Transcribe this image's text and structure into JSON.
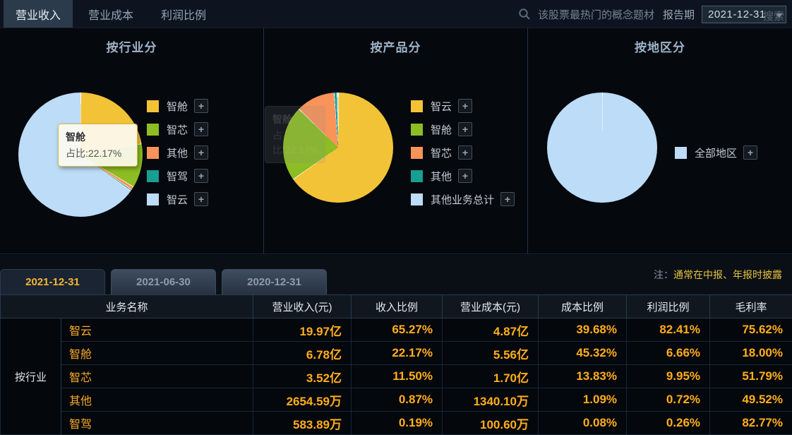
{
  "top_tabs": [
    {
      "label": "营业收入",
      "active": true
    },
    {
      "label": "营业成本",
      "active": false
    },
    {
      "label": "利润比例",
      "active": false
    }
  ],
  "search": {
    "placeholder": "该股票最热门的概念题材",
    "report_period_label": "报告期",
    "selected_date": "2021-12-31",
    "hidden_search_label": "搜索",
    "icon": "search-icon"
  },
  "chart_data": [
    {
      "type": "pie",
      "title": "按行业分",
      "legend_position": "right",
      "series": [
        {
          "name": "智舱",
          "value": 22.17,
          "color": "#f3c337"
        },
        {
          "name": "智芯",
          "value": 11.5,
          "color": "#8cbd22"
        },
        {
          "name": "其他",
          "value": 0.87,
          "color": "#f9935a"
        },
        {
          "name": "智驾",
          "value": 0.19,
          "color": "#189e93"
        },
        {
          "name": "智云",
          "value": 65.27,
          "color": "#bcdcf7"
        }
      ]
    },
    {
      "type": "pie",
      "title": "按产品分",
      "legend_position": "right",
      "series": [
        {
          "name": "智云",
          "value": 65.27,
          "color": "#f3c337"
        },
        {
          "name": "智舱",
          "value": 22.17,
          "color": "#8cbd22"
        },
        {
          "name": "智芯",
          "value": 11.5,
          "color": "#f9935a"
        },
        {
          "name": "其他",
          "value": 0.87,
          "color": "#189e93"
        },
        {
          "name": "其他业务总计",
          "value": 0.19,
          "color": "#bcdcf7"
        }
      ]
    },
    {
      "type": "pie",
      "title": "按地区分",
      "legend_position": "right",
      "series": [
        {
          "name": "全部地区",
          "value": 100,
          "color": "#bcdcf7"
        }
      ]
    }
  ],
  "tooltips": {
    "industry": {
      "name": "智舱",
      "line": "占比:22.17%"
    },
    "product_faded": {
      "name": "智舱",
      "line": "占比:22.17%"
    }
  },
  "date_tabs": [
    {
      "label": "2021-12-31",
      "active": true
    },
    {
      "label": "2021-06-30",
      "active": false
    },
    {
      "label": "2020-12-31",
      "active": false
    }
  ],
  "note": {
    "prefix": "注：",
    "text": "通常在中报、年报时披露"
  },
  "table": {
    "group_label": "按行业",
    "headers": [
      "业务名称",
      "营业收入(元)",
      "收入比例",
      "营业成本(元)",
      "成本比例",
      "利润比例",
      "毛利率"
    ],
    "rows": [
      {
        "name": "智云",
        "values": [
          "19.97亿",
          "65.27%",
          "4.87亿",
          "39.68%",
          "82.41%",
          "75.62%"
        ]
      },
      {
        "name": "智舱",
        "values": [
          "6.78亿",
          "22.17%",
          "5.56亿",
          "45.32%",
          "6.66%",
          "18.00%"
        ]
      },
      {
        "name": "智芯",
        "values": [
          "3.52亿",
          "11.50%",
          "1.70亿",
          "13.83%",
          "9.95%",
          "51.79%"
        ]
      },
      {
        "name": "其他",
        "values": [
          "2654.59万",
          "0.87%",
          "1340.10万",
          "1.09%",
          "0.72%",
          "49.52%"
        ]
      },
      {
        "name": "智驾",
        "values": [
          "583.89万",
          "0.19%",
          "100.60万",
          "0.08%",
          "0.26%",
          "82.77%"
        ]
      }
    ]
  },
  "colors": {
    "accent_gold": "#ffae1d",
    "note_gold": "#e8c23c",
    "active_tab_bg": "#2b3b4b",
    "pie_border": "#ffffff"
  }
}
